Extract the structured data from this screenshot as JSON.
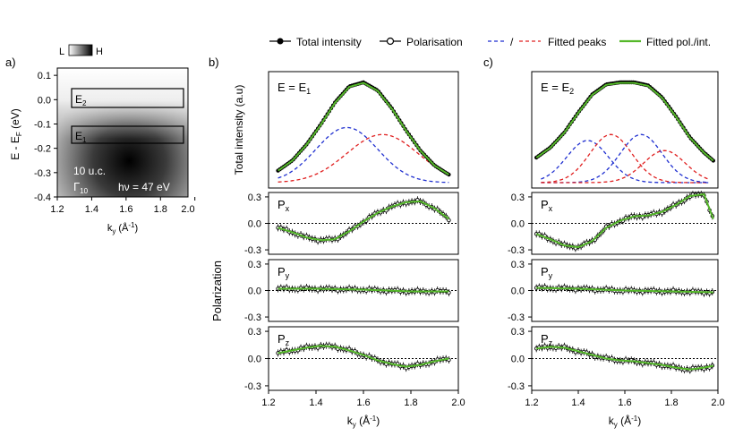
{
  "legend": {
    "total_intensity": "Total intensity",
    "polarisation": "Polarisation",
    "slash": "/",
    "fitted_peaks": "Fitted peaks",
    "fitted_pol_int": "Fitted pol./int."
  },
  "colors": {
    "data": "#000000",
    "fit": "#55b82a",
    "peak_blue": "#1f2fd0",
    "peak_red": "#e02020"
  },
  "panel_a": {
    "label": "a)",
    "colorbar_low": "L",
    "colorbar_high": "H",
    "ylabel": "E - E",
    "ylabel_sub": "F",
    "ylabel_unit": " (eV)",
    "xlabel": "k",
    "xlabel_sub": "y",
    "xlabel_unit": " (Å",
    "xlabel_sup": "-1",
    "xlabel_close": ")",
    "yticks": [
      "0.1",
      "0.0",
      "-0.1",
      "-0.2",
      "-0.3",
      "-0.4"
    ],
    "xticks": [
      "1.2",
      "1.4",
      "1.6",
      "1.8",
      "2.0"
    ],
    "box_e2": "E",
    "box_e2_sub": "2",
    "box_e1": "E",
    "box_e1_sub": "1",
    "thickness": "10 u.c.",
    "gamma": "Γ",
    "gamma_sub": "10",
    "photon": "hν = 47 eV"
  },
  "panel_b": {
    "label": "b)",
    "energy": "E = E",
    "energy_sub": "1"
  },
  "panel_c": {
    "label": "c)",
    "energy": "E = E",
    "energy_sub": "2"
  },
  "shared": {
    "intensity_ylabel": "Total intensity (a.u)",
    "polarization_ylabel": "Polarization",
    "px": "P",
    "px_sub": "x",
    "py": "P",
    "py_sub": "y",
    "pz": "P",
    "pz_sub": "z",
    "pol_yticks": [
      "0.3",
      "0.0",
      "-0.3"
    ],
    "xticks": [
      "1.2",
      "1.4",
      "1.6",
      "1.8",
      "2.0"
    ],
    "xlabel": "k",
    "xlabel_sub": "y",
    "xlabel_unit": " (Å",
    "xlabel_sup": "-1",
    "xlabel_close": ")"
  },
  "chart_data": [
    {
      "type": "heatmap",
      "title": "ARPES intensity map, 10 u.c., Γ10, hν = 47 eV",
      "xlabel": "ky (Å-1)",
      "ylabel": "E - EF (eV)",
      "xlim": [
        1.2,
        1.96
      ],
      "ylim": [
        -0.4,
        0.13
      ],
      "colorbar": [
        "L",
        "H"
      ],
      "boxes": [
        {
          "name": "E2",
          "ky": [
            1.25,
            1.95
          ],
          "E": [
            -0.04,
            0.02
          ]
        },
        {
          "name": "E1",
          "ky": [
            1.25,
            1.95
          ],
          "E": [
            -0.17,
            -0.11
          ]
        }
      ]
    },
    {
      "type": "line",
      "title": "E = E1",
      "xlim": [
        1.2,
        2.0
      ],
      "ylabel": "Total intensity (a.u)",
      "total_intensity": {
        "x": [
          1.24,
          1.3,
          1.36,
          1.42,
          1.48,
          1.54,
          1.6,
          1.66,
          1.72,
          1.78,
          1.84,
          1.9,
          1.96
        ],
        "y": [
          0.12,
          0.22,
          0.38,
          0.58,
          0.8,
          0.96,
          1.0,
          0.92,
          0.74,
          0.52,
          0.32,
          0.17,
          0.08
        ]
      },
      "fitted_peaks": [
        {
          "name": "blue",
          "center": 1.53,
          "width": 0.13,
          "amplitude": 0.55
        },
        {
          "name": "red",
          "center": 1.68,
          "width": 0.15,
          "amplitude": 0.48
        }
      ],
      "series": [
        {
          "name": "Px",
          "x": [
            1.24,
            1.3,
            1.36,
            1.42,
            1.48,
            1.54,
            1.6,
            1.66,
            1.72,
            1.78,
            1.84,
            1.9,
            1.96
          ],
          "y": [
            -0.05,
            -0.1,
            -0.16,
            -0.19,
            -0.18,
            -0.09,
            0.02,
            0.12,
            0.19,
            0.24,
            0.25,
            0.17,
            0.05
          ]
        },
        {
          "name": "Py",
          "x": [
            1.24,
            1.4,
            1.6,
            1.8,
            1.96
          ],
          "y": [
            0.02,
            0.02,
            0.01,
            -0.01,
            -0.01
          ]
        },
        {
          "name": "Pz",
          "x": [
            1.24,
            1.3,
            1.36,
            1.42,
            1.48,
            1.54,
            1.6,
            1.66,
            1.72,
            1.78,
            1.84,
            1.9,
            1.96
          ],
          "y": [
            0.06,
            0.09,
            0.12,
            0.14,
            0.13,
            0.09,
            0.04,
            -0.02,
            -0.06,
            -0.09,
            -0.07,
            -0.03,
            0.0
          ]
        }
      ],
      "pol_ylim": [
        -0.35,
        0.35
      ]
    },
    {
      "type": "line",
      "title": "E = E2",
      "xlim": [
        1.2,
        2.0
      ],
      "ylabel": "Total intensity (a.u)",
      "total_intensity": {
        "x": [
          1.22,
          1.28,
          1.34,
          1.4,
          1.46,
          1.52,
          1.58,
          1.64,
          1.7,
          1.76,
          1.82,
          1.88,
          1.94,
          1.98
        ],
        "y": [
          0.25,
          0.35,
          0.5,
          0.7,
          0.88,
          0.98,
          1.0,
          1.0,
          0.97,
          0.85,
          0.66,
          0.45,
          0.3,
          0.22
        ]
      },
      "fitted_peaks": [
        {
          "name": "blue",
          "center": 1.44,
          "width": 0.09,
          "amplitude": 0.42
        },
        {
          "name": "red",
          "center": 1.54,
          "width": 0.09,
          "amplitude": 0.48
        },
        {
          "name": "blue",
          "center": 1.67,
          "width": 0.09,
          "amplitude": 0.48
        },
        {
          "name": "red",
          "center": 1.77,
          "width": 0.09,
          "amplitude": 0.32
        }
      ],
      "series": [
        {
          "name": "Px",
          "x": [
            1.22,
            1.28,
            1.34,
            1.4,
            1.46,
            1.52,
            1.58,
            1.64,
            1.7,
            1.76,
            1.82,
            1.88,
            1.94,
            1.98
          ],
          "y": [
            -0.12,
            -0.18,
            -0.25,
            -0.27,
            -0.2,
            -0.05,
            0.03,
            0.08,
            0.09,
            0.13,
            0.21,
            0.31,
            0.33,
            0.05
          ]
        },
        {
          "name": "Py",
          "x": [
            1.22,
            1.4,
            1.6,
            1.8,
            1.98
          ],
          "y": [
            0.03,
            0.02,
            0.0,
            -0.01,
            -0.02
          ]
        },
        {
          "name": "Pz",
          "x": [
            1.22,
            1.28,
            1.34,
            1.4,
            1.46,
            1.52,
            1.58,
            1.64,
            1.7,
            1.76,
            1.82,
            1.88,
            1.94,
            1.98
          ],
          "y": [
            0.11,
            0.13,
            0.12,
            0.08,
            0.04,
            0.0,
            -0.02,
            -0.03,
            -0.05,
            -0.07,
            -0.1,
            -0.12,
            -0.1,
            -0.08
          ]
        }
      ],
      "pol_ylim": [
        -0.35,
        0.35
      ]
    }
  ]
}
